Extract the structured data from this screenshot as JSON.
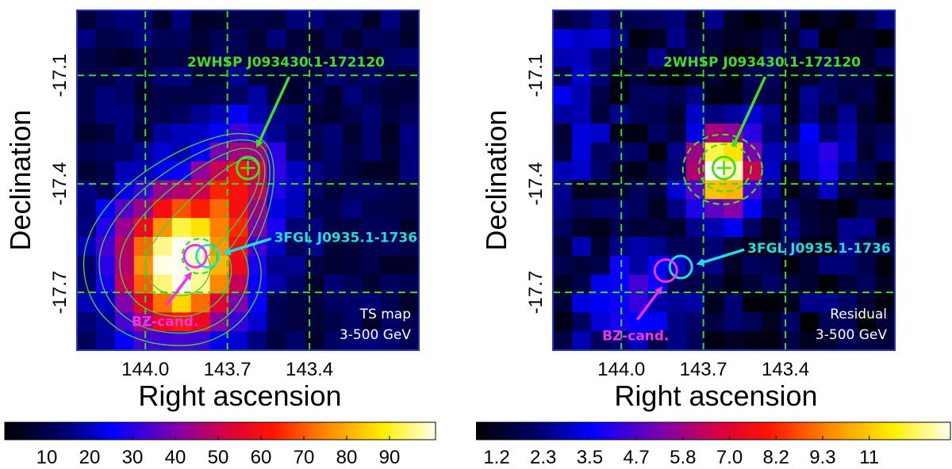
{
  "chart_data": [
    {
      "type": "heatmap",
      "panel": "TS map",
      "xlabel": "Right ascension",
      "ylabel": "Declination",
      "xlim": [
        144.25,
        143.0
      ],
      "ylim": [
        -17.86,
        -16.92
      ],
      "x_ticks": [
        "144.0",
        "143.7",
        "143.4"
      ],
      "y_ticks": [
        "-17.1",
        "-17.4",
        "-17.7"
      ],
      "grid": true,
      "corner_text": [
        "TS map",
        "3-500 GeV"
      ],
      "colorbar": {
        "ticks": [
          "10",
          "20",
          "30",
          "40",
          "50",
          "60",
          "70",
          "80",
          "90"
        ],
        "range": [
          0,
          100
        ]
      },
      "peak": {
        "ra": 143.87,
        "dec": -17.62,
        "value": 100
      },
      "secondary_peak": {
        "ra": 143.65,
        "dec": -17.38,
        "value": 40
      },
      "contours": [
        25,
        40,
        60,
        85
      ],
      "sources": [
        {
          "label": "2WHSP J093430.1-172120",
          "ra": 143.625,
          "dec": -17.356,
          "color": "#44dd22",
          "marker": "circle-plus"
        },
        {
          "label": "3FGL J0935.1-1736",
          "ra": 143.79,
          "dec": -17.6,
          "color": "#22dddd",
          "marker": "circle"
        },
        {
          "label": "BZ-cand.",
          "ra": 143.8,
          "dec": -17.6,
          "color": "#ee33ee",
          "marker": "circle"
        }
      ]
    },
    {
      "type": "heatmap",
      "panel": "Residual",
      "xlabel": "Right ascension",
      "ylabel": "Declination",
      "xlim": [
        144.25,
        143.0
      ],
      "ylim": [
        -17.86,
        -16.92
      ],
      "x_ticks": [
        "144.0",
        "143.7",
        "143.4"
      ],
      "y_ticks": [
        "-17.1",
        "-17.4",
        "-17.7"
      ],
      "grid": true,
      "corner_text": [
        "Residual",
        "3-500 GeV"
      ],
      "colorbar": {
        "ticks": [
          "1.2",
          "2.3",
          "3.5",
          "4.7",
          "5.8",
          "7.0",
          "8.2",
          "9.3",
          "11"
        ],
        "range": [
          0,
          12
        ]
      },
      "peak": {
        "ra": 143.63,
        "dec": -17.36,
        "value": 12
      },
      "sources": [
        {
          "label": "2WHSP J093430.1-172120",
          "ra": 143.625,
          "dec": -17.356,
          "color": "#44dd22",
          "marker": "circle-plus"
        },
        {
          "label": "3FGL J0935.1-1736",
          "ra": 143.8,
          "dec": -17.63,
          "color": "#22dddd",
          "marker": "circle"
        },
        {
          "label": "BZ-cand.",
          "ra": 143.82,
          "dec": -17.64,
          "color": "#ee33ee",
          "marker": "circle"
        }
      ]
    }
  ]
}
